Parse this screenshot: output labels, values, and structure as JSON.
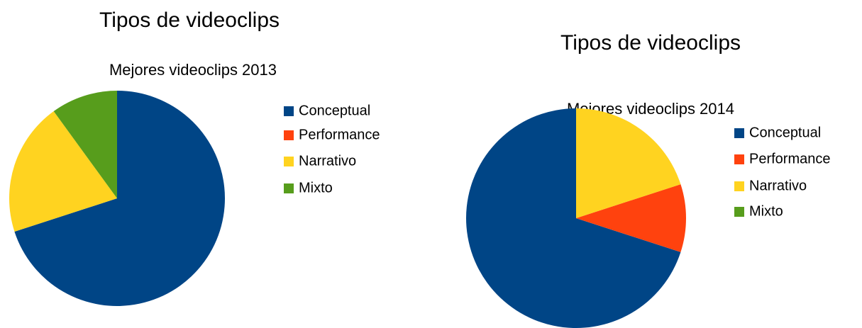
{
  "chart_data": [
    {
      "type": "pie",
      "title": "Tipos de videoclips",
      "subtitle": "Mejores videoclips 2013",
      "categories": [
        "Conceptual",
        "Performance",
        "Narrativo",
        "Mixto"
      ],
      "values": [
        70,
        0,
        20,
        10
      ],
      "colors": [
        "#004586",
        "#ff420e",
        "#ffd320",
        "#579d1c"
      ],
      "direction": "clockwise"
    },
    {
      "type": "pie",
      "title": "Tipos de videoclips",
      "subtitle": "Mejores videoclips 2014",
      "categories": [
        "Conceptual",
        "Performance",
        "Narrativo",
        "Mixto"
      ],
      "values": [
        70,
        10,
        20,
        0
      ],
      "colors": [
        "#004586",
        "#ff420e",
        "#ffd320",
        "#579d1c"
      ],
      "direction": "counterclockwise"
    }
  ]
}
